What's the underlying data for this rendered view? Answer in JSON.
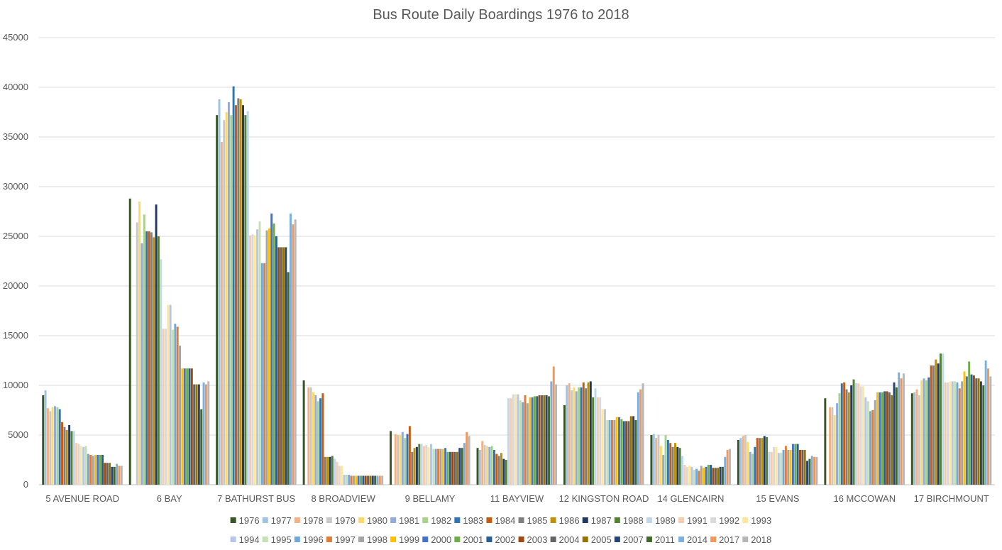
{
  "chart_data": {
    "type": "bar",
    "title": "Bus Route Daily Boardings 1976 to 2018",
    "xlabel": "",
    "ylabel": "",
    "ylim": [
      0,
      45000
    ],
    "yticks": [
      0,
      5000,
      10000,
      15000,
      20000,
      25000,
      30000,
      35000,
      40000,
      45000
    ],
    "grid": true,
    "legend_position": "bottom",
    "categories": [
      "5 AVENUE ROAD",
      "6 BAY",
      "7 BATHURST BUS",
      "8 BROADVIEW",
      "9 BELLAMY",
      "11 BAYVIEW",
      "12 KINGSTON ROAD",
      "14 GLENCAIRN",
      "15 EVANS",
      "16 MCCOWAN",
      "17 BIRCHMOUNT"
    ],
    "series": [
      {
        "name": "1976",
        "color": "#375623",
        "values": [
          9000,
          28800,
          37200,
          10500,
          5400,
          3700,
          8000,
          5000,
          4500,
          8700,
          9200
        ]
      },
      {
        "name": "1977",
        "color": "#9dc3e6",
        "values": [
          9500,
          0,
          38800,
          0,
          0,
          3500,
          10000,
          5100,
          4700,
          0,
          9300
        ]
      },
      {
        "name": "1978",
        "color": "#f4b183",
        "values": [
          7700,
          0,
          34500,
          9800,
          5100,
          4400,
          10200,
          4700,
          4900,
          7800,
          9600
        ]
      },
      {
        "name": "1979",
        "color": "#c9c9c9",
        "values": [
          7400,
          26400,
          36700,
          9800,
          5000,
          4000,
          9500,
          5000,
          5000,
          7800,
          9000
        ]
      },
      {
        "name": "1980",
        "color": "#ffd966",
        "values": [
          7800,
          28500,
          37500,
          9300,
          5000,
          3900,
          9800,
          3900,
          4300,
          7000,
          10500
        ]
      },
      {
        "name": "1981",
        "color": "#8faadc",
        "values": [
          7900,
          24300,
          38500,
          9000,
          5300,
          3800,
          9400,
          3000,
          3300,
          8200,
          10700
        ]
      },
      {
        "name": "1982",
        "color": "#a9d18e",
        "values": [
          7800,
          27200,
          37200,
          8400,
          4700,
          3900,
          9800,
          5000,
          3100,
          9200,
          10500
        ]
      },
      {
        "name": "1983",
        "color": "#2e75b6",
        "values": [
          7600,
          25500,
          40100,
          8700,
          5100,
          3500,
          9800,
          4500,
          3800,
          10200,
          10800
        ]
      },
      {
        "name": "1984",
        "color": "#c55a11",
        "values": [
          6300,
          25500,
          38200,
          9200,
          5900,
          3100,
          10300,
          4200,
          4700,
          10300,
          12000
        ]
      },
      {
        "name": "1985",
        "color": "#7f7f7f",
        "values": [
          5800,
          25400,
          38900,
          2800,
          3300,
          2900,
          9700,
          3800,
          4700,
          9600,
          12000
        ]
      },
      {
        "name": "1986",
        "color": "#bf9000",
        "values": [
          5500,
          24900,
          38800,
          2800,
          3700,
          3200,
          10300,
          4200,
          4700,
          9300,
          12600
        ]
      },
      {
        "name": "1987",
        "color": "#203864",
        "values": [
          6000,
          28200,
          38200,
          2800,
          3800,
          2600,
          10400,
          3800,
          4900,
          10000,
          12200
        ]
      },
      {
        "name": "1988",
        "color": "#548235",
        "values": [
          5400,
          25000,
          37200,
          2900,
          4100,
          2500,
          8800,
          3700,
          4800,
          10600,
          13200
        ]
      },
      {
        "name": "1989",
        "color": "#bdd7ee",
        "values": [
          5400,
          22700,
          37600,
          2600,
          4100,
          8700,
          9700,
          2900,
          3300,
          10200,
          13200
        ]
      },
      {
        "name": "1991",
        "color": "#f8cbad",
        "values": [
          4200,
          15700,
          25100,
          2300,
          3900,
          8700,
          8800,
          2000,
          3300,
          10200,
          10300
        ]
      },
      {
        "name": "1992",
        "color": "#d9d9d9",
        "values": [
          4100,
          15700,
          25200,
          1900,
          4000,
          9100,
          8800,
          1800,
          3800,
          9900,
          10300
        ]
      },
      {
        "name": "1993",
        "color": "#ffe699",
        "values": [
          3900,
          18100,
          25100,
          1900,
          3800,
          9100,
          7600,
          1900,
          3800,
          9900,
          10400
        ]
      },
      {
        "name": "1994",
        "color": "#b4c7e7",
        "values": [
          3800,
          18100,
          25700,
          1000,
          4100,
          9100,
          7600,
          1800,
          3200,
          8800,
          10400
        ]
      },
      {
        "name": "1995",
        "color": "#c5e0b4",
        "values": [
          3900,
          15600,
          26500,
          1000,
          3600,
          8500,
          6500,
          1500,
          3200,
          8400,
          10400
        ]
      },
      {
        "name": "1996",
        "color": "#6fa8dc",
        "values": [
          3100,
          16200,
          22300,
          1000,
          3600,
          8300,
          6500,
          1600,
          3500,
          7400,
          10300
        ]
      },
      {
        "name": "1997",
        "color": "#e07b39",
        "values": [
          3000,
          15900,
          22300,
          900,
          3600,
          9000,
          6500,
          1400,
          3900,
          7500,
          9700
        ]
      },
      {
        "name": "1998",
        "color": "#a5a5a5",
        "values": [
          2900,
          14000,
          25600,
          900,
          3600,
          8200,
          6500,
          1900,
          3500,
          8500,
          10400
        ]
      },
      {
        "name": "1999",
        "color": "#ffc000",
        "values": [
          3000,
          11700,
          25800,
          900,
          3600,
          8800,
          6800,
          1700,
          3500,
          9300,
          11400
        ]
      },
      {
        "name": "2000",
        "color": "#4472c4",
        "values": [
          3000,
          11700,
          27300,
          900,
          3700,
          8800,
          6800,
          1800,
          4100,
          9300,
          10900
        ]
      },
      {
        "name": "2001",
        "color": "#70ad47",
        "values": [
          3000,
          11700,
          26300,
          900,
          3300,
          8900,
          6600,
          2000,
          4100,
          9300,
          12400
        ]
      },
      {
        "name": "2002",
        "color": "#255e91",
        "values": [
          3000,
          11700,
          25000,
          900,
          3300,
          8900,
          6400,
          2000,
          4100,
          9400,
          11100
        ]
      },
      {
        "name": "2003",
        "color": "#9e480e",
        "values": [
          2200,
          11700,
          23900,
          900,
          3300,
          9000,
          6400,
          1700,
          3500,
          9400,
          11000
        ]
      },
      {
        "name": "2004",
        "color": "#636363",
        "values": [
          2200,
          10100,
          23900,
          900,
          3300,
          9000,
          6400,
          1700,
          3500,
          9300,
          10700
        ]
      },
      {
        "name": "2005",
        "color": "#997300",
        "values": [
          2200,
          10100,
          23900,
          900,
          3300,
          9000,
          6900,
          1700,
          3500,
          9000,
          10700
        ]
      },
      {
        "name": "2007",
        "color": "#264478",
        "values": [
          1800,
          10100,
          23900,
          900,
          3700,
          9000,
          6900,
          1800,
          2400,
          10300,
          10400
        ]
      },
      {
        "name": "2011",
        "color": "#43682b",
        "values": [
          1800,
          7600,
          21400,
          900,
          3700,
          8900,
          6500,
          1800,
          2600,
          9800,
          10000
        ]
      },
      {
        "name": "2014",
        "color": "#7cafdd",
        "values": [
          2100,
          10300,
          27300,
          900,
          4200,
          10400,
          9300,
          2800,
          2900,
          11300,
          12500
        ]
      },
      {
        "name": "2017",
        "color": "#f1975a",
        "values": [
          1900,
          10100,
          26200,
          900,
          5300,
          11900,
          9600,
          3500,
          2800,
          10700,
          11700
        ]
      },
      {
        "name": "2018",
        "color": "#b7b7b7",
        "values": [
          1900,
          10400,
          26700,
          900,
          4900,
          10100,
          10200,
          3600,
          2800,
          11200,
          10900
        ]
      }
    ]
  }
}
